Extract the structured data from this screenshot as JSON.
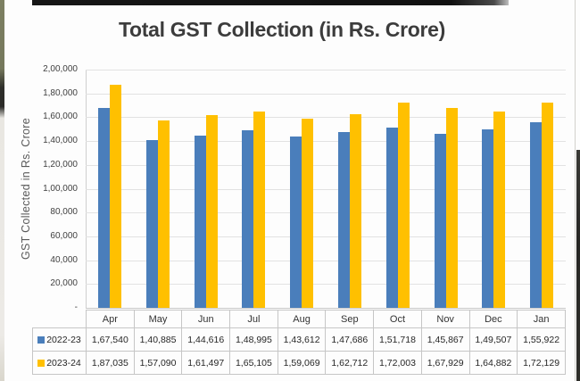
{
  "chart_data": {
    "type": "bar",
    "title": "Total GST Collection (in Rs. Crore)",
    "xlabel": "",
    "ylabel": "GST Collected in Rs. Crore",
    "categories": [
      "Apr",
      "May",
      "Jun",
      "Jul",
      "Aug",
      "Sep",
      "Oct",
      "Nov",
      "Dec",
      "Jan"
    ],
    "series": [
      {
        "name": "2022-23",
        "color": "#4a7ebb",
        "values": [
          167540,
          140885,
          144616,
          148995,
          143612,
          147686,
          151718,
          145867,
          149507,
          155922
        ],
        "display": [
          "1,67,540",
          "1,40,885",
          "1,44,616",
          "1,48,995",
          "1,43,612",
          "1,47,686",
          "1,51,718",
          "1,45,867",
          "1,49,507",
          "1,55,922"
        ]
      },
      {
        "name": "2023-24",
        "color": "#ffc000",
        "values": [
          187035,
          157090,
          161497,
          165105,
          159069,
          162712,
          172003,
          167929,
          164882,
          172129
        ],
        "display": [
          "1,87,035",
          "1,57,090",
          "1,61,497",
          "1,65,105",
          "1,59,069",
          "1,62,712",
          "1,72,003",
          "1,67,929",
          "1,64,882",
          "1,72,129"
        ]
      }
    ],
    "ylim": [
      0,
      200000
    ],
    "ytick_step": 20000,
    "ytick_labels_bottom_to_top": [
      "-",
      "20,000",
      "40,000",
      "60,000",
      "80,000",
      "1,00,000",
      "1,20,000",
      "1,40,000",
      "1,60,000",
      "1,80,000",
      "2,00,000"
    ],
    "grid": true,
    "legend_position": "data-table-left"
  }
}
